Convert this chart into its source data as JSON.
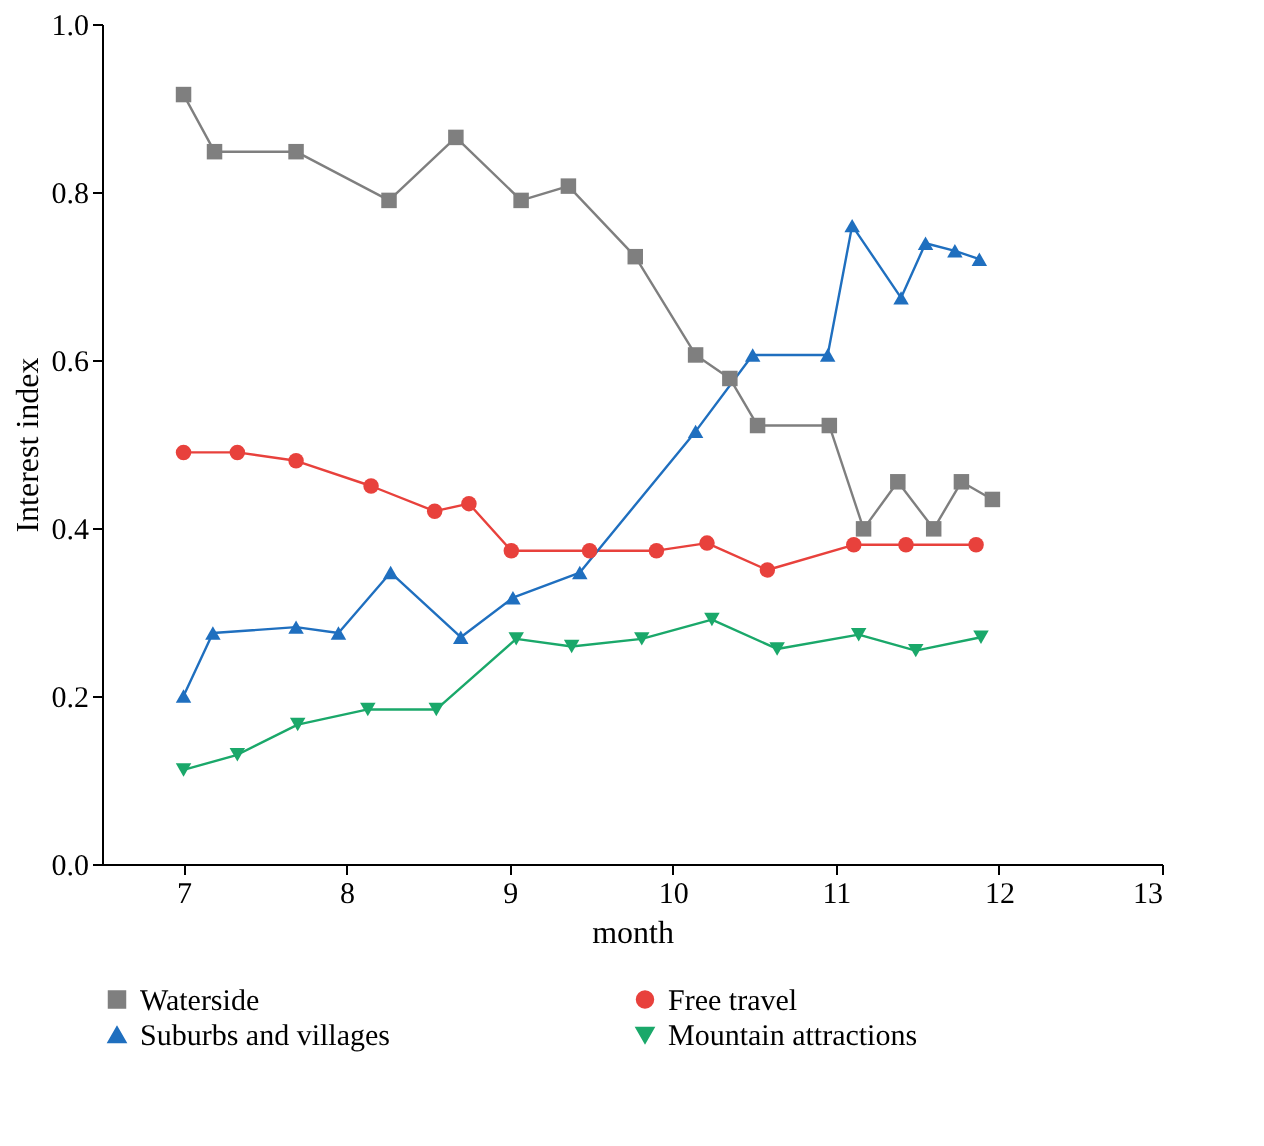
{
  "chart_data": {
    "type": "line",
    "xlabel": "month",
    "ylabel": "Interest index",
    "xlim": [
      6.5,
      13
    ],
    "xticks": [
      7,
      8,
      9,
      10,
      11,
      12,
      13
    ],
    "ylim": [
      0,
      1
    ],
    "yticks": [
      {
        "value": 0,
        "label": "0.0"
      },
      0.2,
      0.4,
      0.6,
      0.8,
      {
        "value": 1,
        "label": "1.0"
      }
    ],
    "grid": false,
    "legend": "bottom",
    "line_style": "solid",
    "series": [
      {
        "name": "Waterside",
        "color": "#7f7f7f",
        "marker": "square",
        "x": [
          7,
          7.19,
          7.69,
          8.26,
          8.67,
          9.07,
          9.36,
          9.77,
          10.14,
          10.35,
          10.52,
          10.96,
          11.17,
          11.38,
          11.6,
          11.77,
          11.96
        ],
        "values": [
          0.916,
          0.848,
          0.848,
          0.79,
          0.865,
          0.79,
          0.807,
          0.723,
          0.606,
          0.578,
          0.522,
          0.522,
          0.399,
          0.455,
          0.399,
          0.455,
          0.434
        ]
      },
      {
        "name": "Free travel",
        "color": "#e8413c",
        "marker": "circle",
        "x": [
          7,
          7.33,
          7.69,
          8.15,
          8.54,
          8.75,
          9.01,
          9.49,
          9.9,
          10.21,
          10.58,
          11.11,
          11.43,
          11.86
        ],
        "values": [
          0.49,
          0.49,
          0.48,
          0.45,
          0.42,
          0.429,
          0.373,
          0.373,
          0.373,
          0.382,
          0.35,
          0.38,
          0.38,
          0.38
        ]
      },
      {
        "name": "Suburbs and villages",
        "color": "#1f6fbf",
        "marker": "triangle",
        "x": [
          7,
          7.18,
          7.69,
          7.95,
          8.27,
          8.7,
          9.02,
          9.43,
          10.14,
          10.49,
          10.95,
          11.1,
          11.4,
          11.55,
          11.73,
          11.88
        ],
        "values": [
          0.2,
          0.275,
          0.282,
          0.275,
          0.347,
          0.27,
          0.317,
          0.347,
          0.515,
          0.606,
          0.606,
          0.76,
          0.674,
          0.739,
          0.73,
          0.72
        ]
      },
      {
        "name": "Mountain attractions",
        "color": "#1aa86a",
        "marker": "triangle-down",
        "x": [
          7,
          7.33,
          7.7,
          8.13,
          8.55,
          9.04,
          9.38,
          9.81,
          10.24,
          10.64,
          11.14,
          11.49,
          11.89
        ],
        "values": [
          0.112,
          0.13,
          0.166,
          0.184,
          0.184,
          0.268,
          0.259,
          0.268,
          0.291,
          0.256,
          0.273,
          0.254,
          0.27
        ]
      }
    ]
  }
}
